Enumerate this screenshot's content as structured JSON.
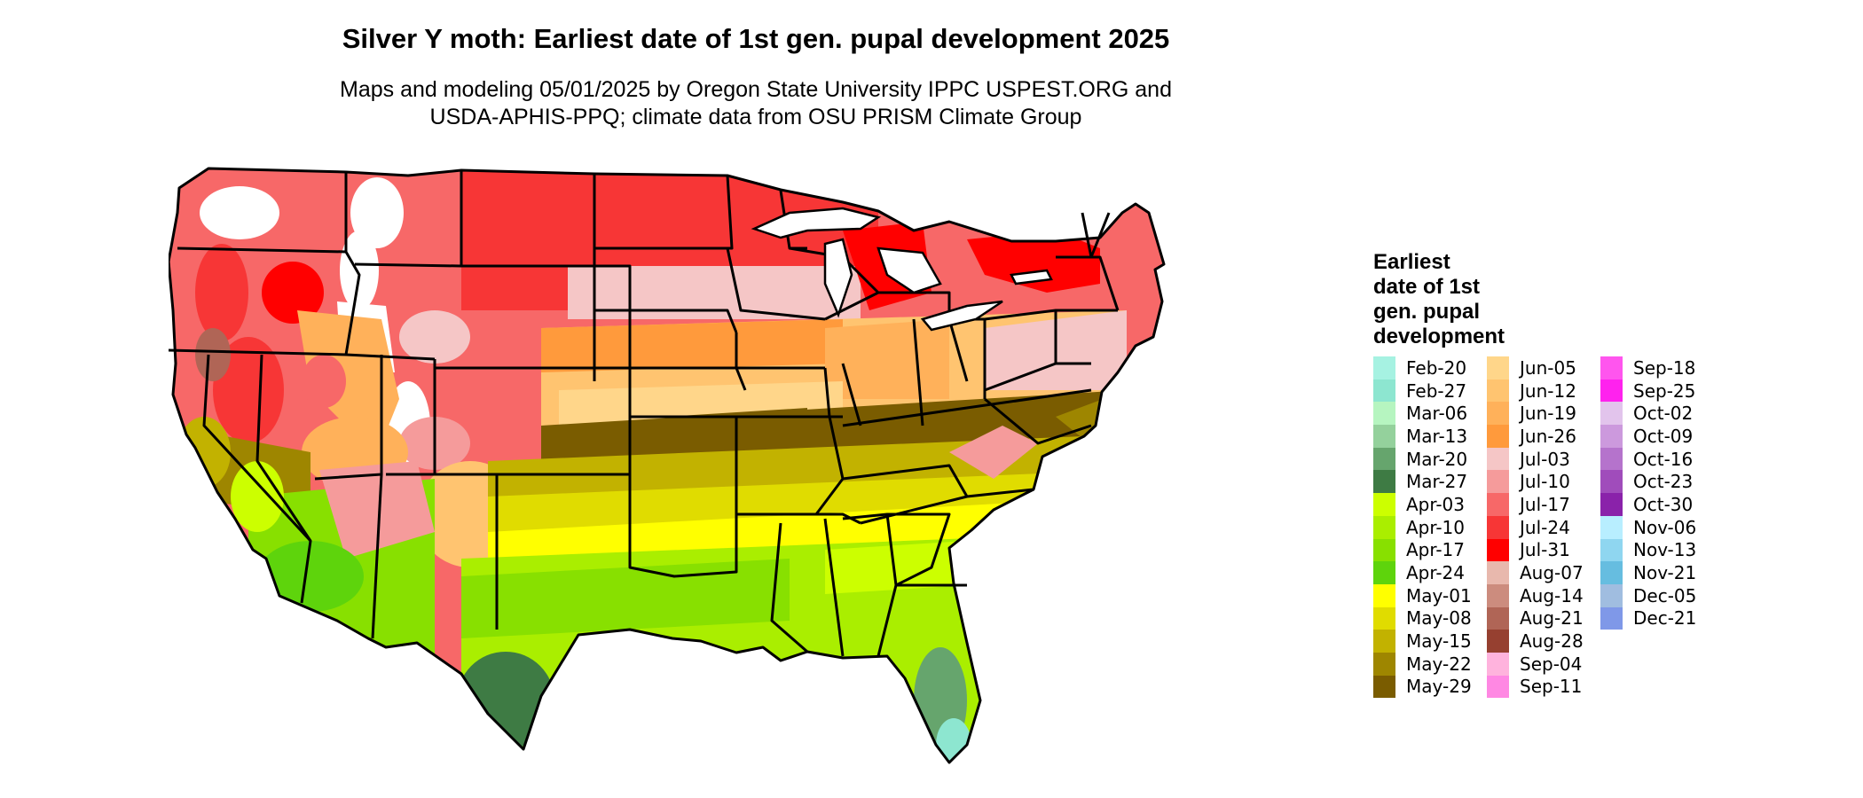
{
  "title": "Silver Y moth: Earliest date of 1st gen. pupal development 2025",
  "subtitle_lines": [
    "Maps and modeling 05/01/2025 by Oregon State University IPPC USPEST.ORG and",
    "USDA-APHIS-PPQ; climate data from OSU PRISM Climate Group"
  ],
  "legend": {
    "title_lines": [
      "Earliest",
      "date of 1st",
      "gen. pupal",
      "development"
    ],
    "columns": [
      [
        {
          "label": "Feb-20",
          "color": "#a6f2e2"
        },
        {
          "label": "Feb-27",
          "color": "#8de6d0"
        },
        {
          "label": "Mar-06",
          "color": "#b6f5c0"
        },
        {
          "label": "Mar-13",
          "color": "#94d19c"
        },
        {
          "label": "Mar-20",
          "color": "#66a56d"
        },
        {
          "label": "Mar-27",
          "color": "#3e7b44"
        },
        {
          "label": "Apr-03",
          "color": "#ccff00"
        },
        {
          "label": "Apr-10",
          "color": "#aaee00"
        },
        {
          "label": "Apr-17",
          "color": "#88e000"
        },
        {
          "label": "Apr-24",
          "color": "#5ed40c"
        },
        {
          "label": "May-01",
          "color": "#ffff00"
        },
        {
          "label": "May-08",
          "color": "#e0dc00"
        },
        {
          "label": "May-15",
          "color": "#c2b200"
        },
        {
          "label": "May-22",
          "color": "#9e8600"
        },
        {
          "label": "May-29",
          "color": "#7a5c00"
        }
      ],
      [
        {
          "label": "Jun-05",
          "color": "#ffd68a"
        },
        {
          "label": "Jun-12",
          "color": "#ffc470"
        },
        {
          "label": "Jun-19",
          "color": "#ffb15a"
        },
        {
          "label": "Jun-26",
          "color": "#ff9a3c"
        },
        {
          "label": "Jul-03",
          "color": "#f5c6c6"
        },
        {
          "label": "Jul-10",
          "color": "#f59b9b"
        },
        {
          "label": "Jul-17",
          "color": "#f76868"
        },
        {
          "label": "Jul-24",
          "color": "#f73636"
        },
        {
          "label": "Jul-31",
          "color": "#ff0000"
        },
        {
          "label": "Aug-07",
          "color": "#e8b8ad"
        },
        {
          "label": "Aug-14",
          "color": "#cc8c7e"
        },
        {
          "label": "Aug-21",
          "color": "#b06556"
        },
        {
          "label": "Aug-28",
          "color": "#964030"
        },
        {
          "label": "Sep-04",
          "color": "#ffb3dd"
        },
        {
          "label": "Sep-11",
          "color": "#ff88e3"
        }
      ],
      [
        {
          "label": "Sep-18",
          "color": "#ff55ee"
        },
        {
          "label": "Sep-25",
          "color": "#ff22ee"
        },
        {
          "label": "Oct-02",
          "color": "#e2c4ec"
        },
        {
          "label": "Oct-09",
          "color": "#cc99dd"
        },
        {
          "label": "Oct-16",
          "color": "#b573cc"
        },
        {
          "label": "Oct-23",
          "color": "#a04cbb"
        },
        {
          "label": "Oct-30",
          "color": "#8a22aa"
        },
        {
          "label": "Nov-06",
          "color": "#b8eeff"
        },
        {
          "label": "Nov-13",
          "color": "#8fd6f0"
        },
        {
          "label": "Nov-21",
          "color": "#66bde0"
        },
        {
          "label": "Dec-05",
          "color": "#a0bde0"
        },
        {
          "label": "Dec-21",
          "color": "#7f98e8"
        }
      ]
    ]
  }
}
